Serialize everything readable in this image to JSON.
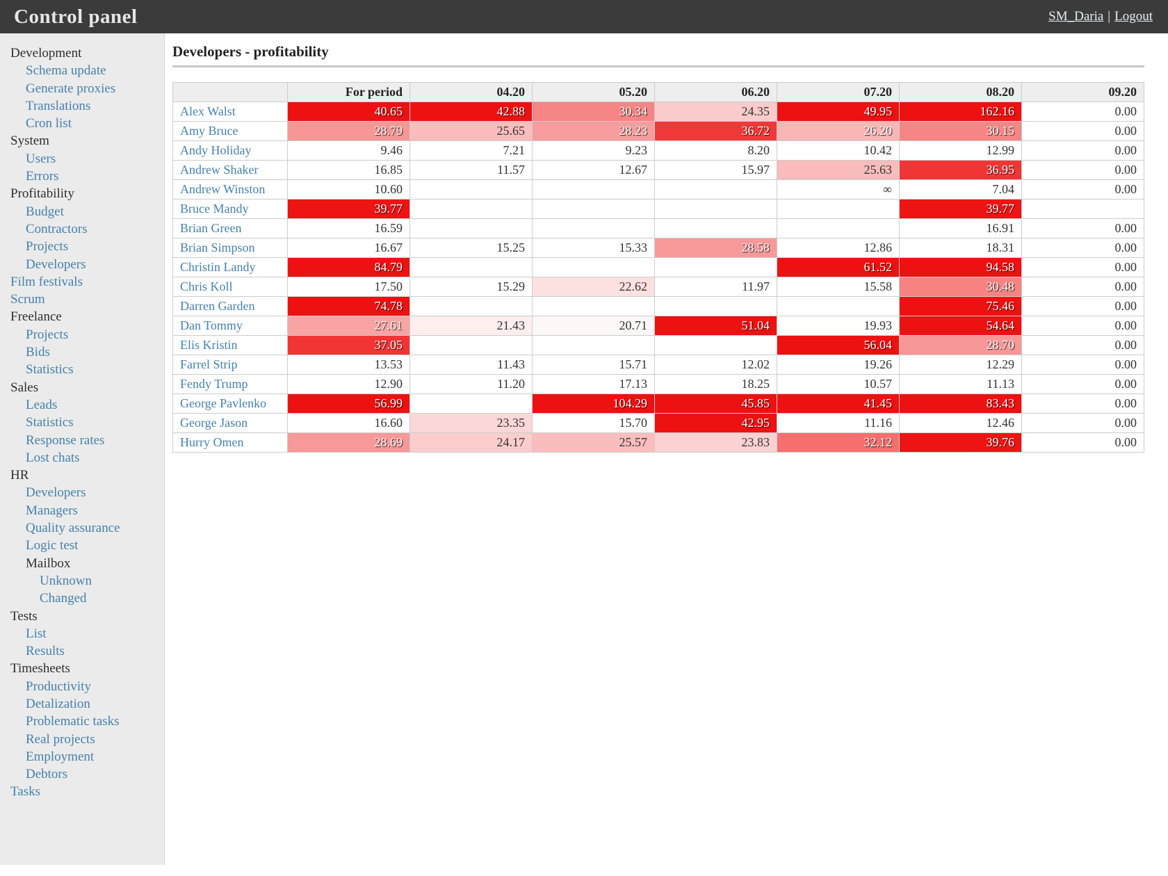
{
  "header": {
    "app_title": "Control panel",
    "username": "SM_Daria",
    "separator": "|",
    "logout_label": "Logout"
  },
  "sidebar": {
    "items": [
      {
        "label": "Development",
        "level": 0,
        "type": "section"
      },
      {
        "label": "Schema update",
        "level": 1,
        "type": "link"
      },
      {
        "label": "Generate proxies",
        "level": 1,
        "type": "link"
      },
      {
        "label": "Translations",
        "level": 1,
        "type": "link"
      },
      {
        "label": "Cron list",
        "level": 1,
        "type": "link"
      },
      {
        "label": "System",
        "level": 0,
        "type": "section"
      },
      {
        "label": "Users",
        "level": 1,
        "type": "link"
      },
      {
        "label": "Errors",
        "level": 1,
        "type": "link"
      },
      {
        "label": "Profitability",
        "level": 0,
        "type": "section"
      },
      {
        "label": "Budget",
        "level": 1,
        "type": "link"
      },
      {
        "label": "Contractors",
        "level": 1,
        "type": "link"
      },
      {
        "label": "Projects",
        "level": 1,
        "type": "link"
      },
      {
        "label": "Developers",
        "level": 1,
        "type": "link"
      },
      {
        "label": "Film festivals",
        "level": 0,
        "type": "link"
      },
      {
        "label": "Scrum",
        "level": 0,
        "type": "link"
      },
      {
        "label": "Freelance",
        "level": 0,
        "type": "section"
      },
      {
        "label": "Projects",
        "level": 1,
        "type": "link"
      },
      {
        "label": "Bids",
        "level": 1,
        "type": "link"
      },
      {
        "label": "Statistics",
        "level": 1,
        "type": "link"
      },
      {
        "label": "Sales",
        "level": 0,
        "type": "section"
      },
      {
        "label": "Leads",
        "level": 1,
        "type": "link"
      },
      {
        "label": "Statistics",
        "level": 1,
        "type": "link"
      },
      {
        "label": "Response rates",
        "level": 1,
        "type": "link"
      },
      {
        "label": "Lost chats",
        "level": 1,
        "type": "link"
      },
      {
        "label": "HR",
        "level": 0,
        "type": "section"
      },
      {
        "label": "Developers",
        "level": 1,
        "type": "link"
      },
      {
        "label": "Managers",
        "level": 1,
        "type": "link"
      },
      {
        "label": "Quality assurance",
        "level": 1,
        "type": "link"
      },
      {
        "label": "Logic test",
        "level": 1,
        "type": "link"
      },
      {
        "label": "Mailbox",
        "level": 1,
        "type": "section"
      },
      {
        "label": "Unknown",
        "level": 2,
        "type": "link"
      },
      {
        "label": "Changed",
        "level": 2,
        "type": "link"
      },
      {
        "label": "Tests",
        "level": 0,
        "type": "section"
      },
      {
        "label": "List",
        "level": 1,
        "type": "link"
      },
      {
        "label": "Results",
        "level": 1,
        "type": "link"
      },
      {
        "label": "Timesheets",
        "level": 0,
        "type": "section"
      },
      {
        "label": "Productivity",
        "level": 1,
        "type": "link"
      },
      {
        "label": "Detalization",
        "level": 1,
        "type": "link"
      },
      {
        "label": "Problematic tasks",
        "level": 1,
        "type": "link"
      },
      {
        "label": "Real projects",
        "level": 1,
        "type": "link"
      },
      {
        "label": "Employment",
        "level": 1,
        "type": "link"
      },
      {
        "label": "Debtors",
        "level": 1,
        "type": "link"
      },
      {
        "label": "Tasks",
        "level": 0,
        "type": "link"
      }
    ]
  },
  "main": {
    "page_title": "Developers - profitability"
  },
  "theme": {
    "header_bg": "#3b3b3b",
    "header_text": "#e8e8e8",
    "sidebar_bg": "#ebebeb",
    "link_color": "#4581ad",
    "table_header_bg": "#eeeeee",
    "border_color": "#cccccc",
    "heat_full_red": "#ee1111"
  },
  "table": {
    "columns": [
      "",
      "For period",
      "04.20",
      "05.20",
      "06.20",
      "07.20",
      "08.20",
      "09.20"
    ],
    "heat": {
      "min": 20,
      "max": 40,
      "white_text_from": 26
    },
    "rows": [
      {
        "name": "Alex Walst",
        "values": [
          "40.65",
          "42.88",
          "30.34",
          "24.35",
          "49.95",
          "162.16",
          "0.00"
        ]
      },
      {
        "name": "Amy Bruce",
        "values": [
          "28.79",
          "25.65",
          "28.23",
          "36.72",
          "26.20",
          "30.15",
          "0.00"
        ]
      },
      {
        "name": "Andy Holiday",
        "values": [
          "9.46",
          "7.21",
          "9.23",
          "8.20",
          "10.42",
          "12.99",
          "0.00"
        ]
      },
      {
        "name": "Andrew Shaker",
        "values": [
          "16.85",
          "11.57",
          "12.67",
          "15.97",
          "25.63",
          "36.95",
          "0.00"
        ]
      },
      {
        "name": "Andrew Winston",
        "values": [
          "10.60",
          "",
          "",
          "",
          "∞",
          "7.04",
          "0.00"
        ]
      },
      {
        "name": "Bruce Mandy",
        "values": [
          "39.77",
          "",
          "",
          "",
          "",
          "39.77",
          ""
        ]
      },
      {
        "name": "Brian Green",
        "values": [
          "16.59",
          "",
          "",
          "",
          "",
          "16.91",
          "0.00"
        ]
      },
      {
        "name": "Brian Simpson",
        "values": [
          "16.67",
          "15.25",
          "15.33",
          "28.58",
          "12.86",
          "18.31",
          "0.00"
        ]
      },
      {
        "name": "Christin Landy",
        "values": [
          "84.79",
          "",
          "",
          "",
          "61.52",
          "94.58",
          "0.00"
        ]
      },
      {
        "name": "Chris Koll",
        "values": [
          "17.50",
          "15.29",
          "22.62",
          "11.97",
          "15.58",
          "30.48",
          "0.00"
        ]
      },
      {
        "name": "Darren Garden",
        "values": [
          "74.78",
          "",
          "",
          "",
          "",
          "75.46",
          "0.00"
        ]
      },
      {
        "name": "Dan Tommy",
        "values": [
          "27.61",
          "21.43",
          "20.71",
          "51.04",
          "19.93",
          "54.64",
          "0.00"
        ]
      },
      {
        "name": "Elis Kristin",
        "values": [
          "37.05",
          "",
          "",
          "",
          "56.04",
          "28.70",
          "0.00"
        ]
      },
      {
        "name": "Farrel Strip",
        "values": [
          "13.53",
          "11.43",
          "15.71",
          "12.02",
          "19.26",
          "12.29",
          "0.00"
        ]
      },
      {
        "name": "Fendy Trump",
        "values": [
          "12.90",
          "11.20",
          "17.13",
          "18.25",
          "10.57",
          "11.13",
          "0.00"
        ]
      },
      {
        "name": "George Pavlenko",
        "values": [
          "56.99",
          "",
          "104.29",
          "45.85",
          "41.45",
          "83.43",
          "0.00"
        ]
      },
      {
        "name": "George Jason",
        "values": [
          "16.60",
          "23.35",
          "15.70",
          "42.95",
          "11.16",
          "12.46",
          "0.00"
        ]
      },
      {
        "name": "Hurry Omen",
        "values": [
          "28.69",
          "24.17",
          "25.57",
          "23.83",
          "32.12",
          "39.76",
          "0.00"
        ]
      }
    ]
  }
}
